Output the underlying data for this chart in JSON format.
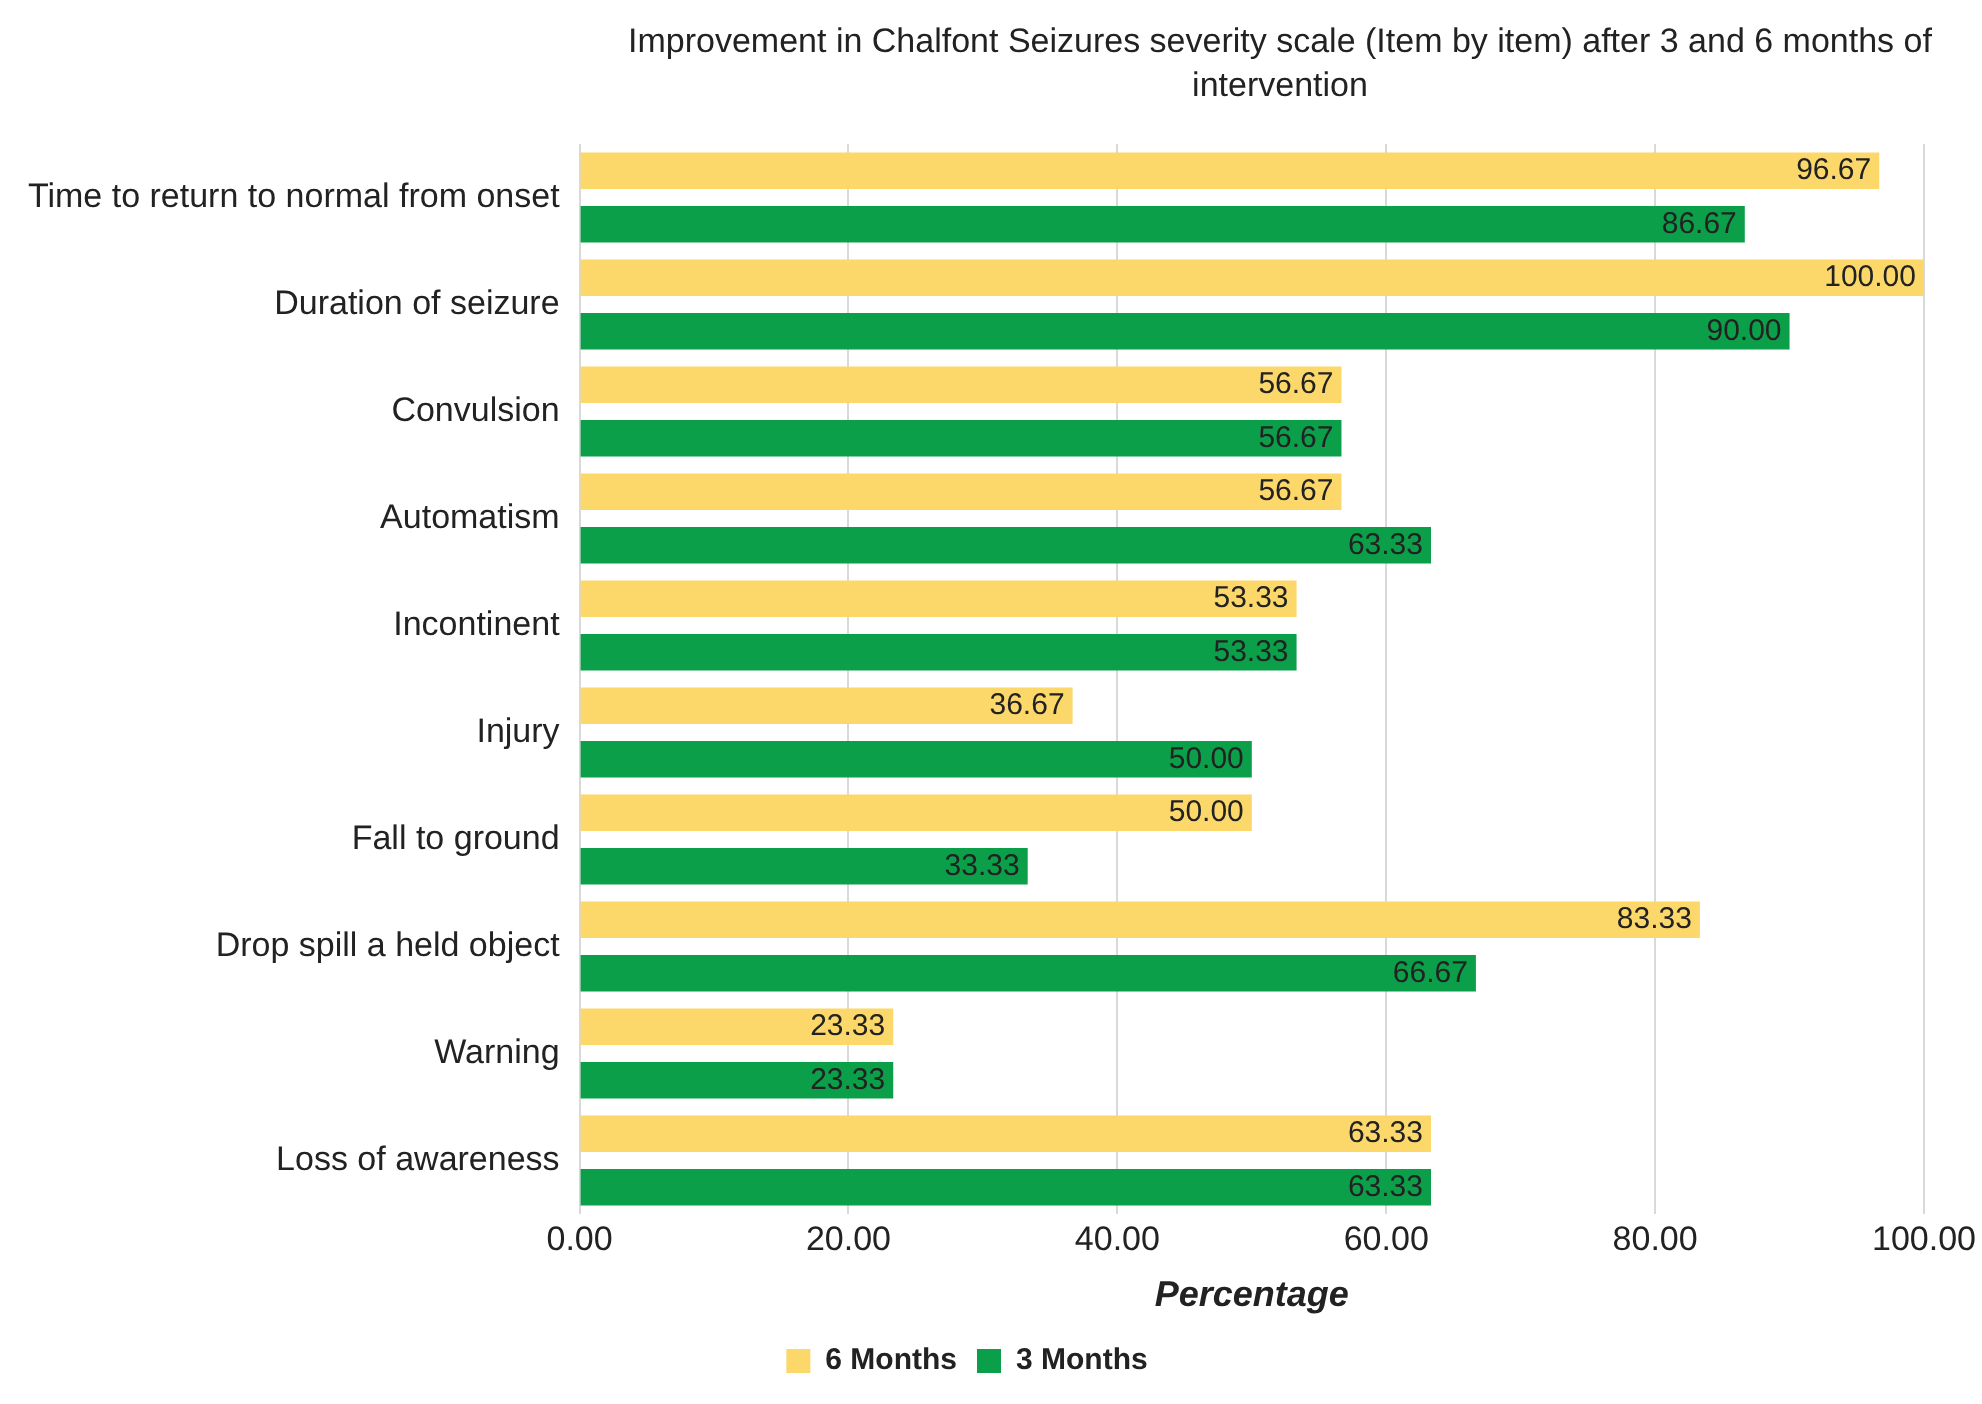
{
  "chart_data": {
    "type": "bar",
    "orientation": "horizontal",
    "title": "Improvement in Chalfont Seizures severity scale (Item by item) after 3 and 6 months of intervention",
    "xlabel": "Percentage",
    "categories": [
      "Time to return to normal from onset",
      "Duration of seizure",
      "Convulsion",
      "Automatism",
      "Incontinent",
      "Injury",
      "Fall to ground",
      "Drop spill a held object",
      "Warning",
      "Loss of awareness"
    ],
    "series": [
      {
        "name": "6 Months",
        "color": "#fcd769",
        "values": [
          96.67,
          100,
          56.67,
          56.67,
          53.33,
          36.67,
          50,
          83.33,
          23.33,
          63.33
        ],
        "value_labels": [
          "96.67",
          "100.00",
          "56.67",
          "56.67",
          "53.33",
          "36.67",
          "50.00",
          "83.33",
          "23.33",
          "63.33"
        ]
      },
      {
        "name": "3 Months",
        "color": "#0b9f4a",
        "values": [
          86.67,
          90,
          56.67,
          63.33,
          53.33,
          50,
          33.33,
          66.67,
          23.33,
          63.33
        ],
        "value_labels": [
          "86.67",
          "90.00",
          "56.67",
          "63.33",
          "53.33",
          "50.00",
          "33.33",
          "66.67",
          "23.33",
          "63.33"
        ]
      }
    ],
    "xlim": [
      0,
      100
    ],
    "xticks": [
      {
        "value": 0,
        "label": "0.00"
      },
      {
        "value": 20,
        "label": "20.00"
      },
      {
        "value": 40,
        "label": "40.00"
      },
      {
        "value": 60,
        "label": "60.00"
      },
      {
        "value": 80,
        "label": "80.00"
      },
      {
        "value": 100,
        "label": "100.00"
      }
    ],
    "grid": "x",
    "legend": "bottom"
  }
}
